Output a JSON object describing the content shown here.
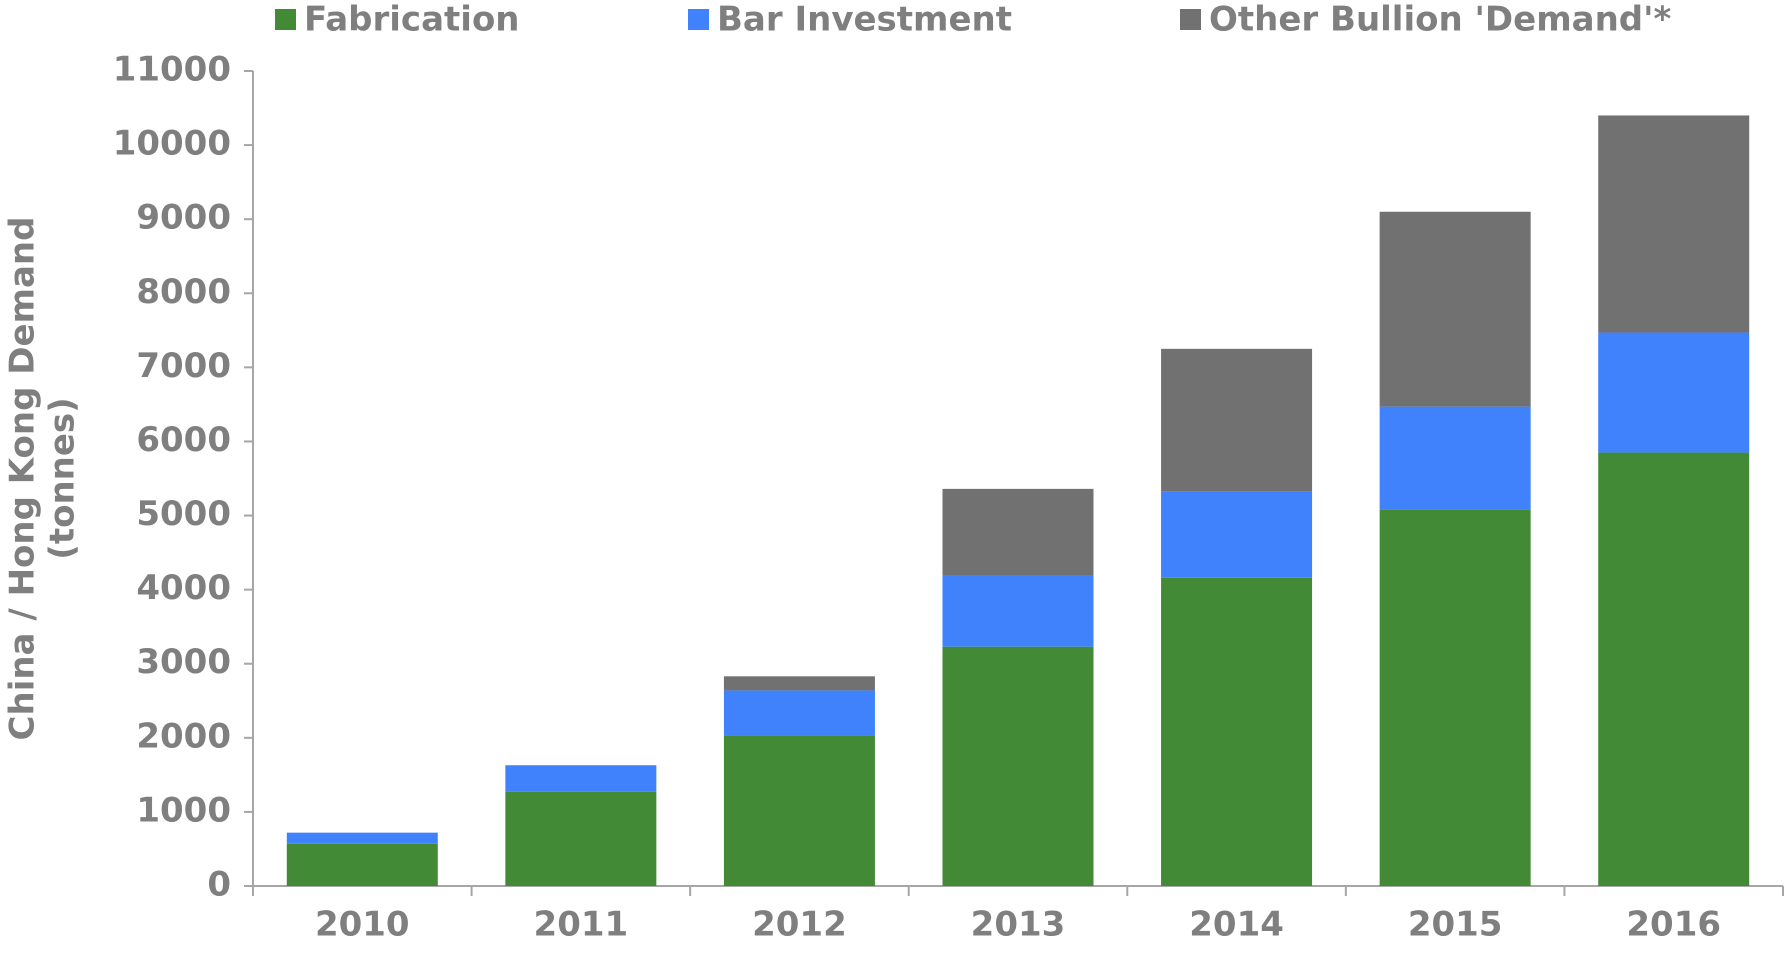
{
  "chart_data": {
    "type": "stacked_bar",
    "y_label": [
      "China / Hong Kong Demand",
      "(tonnes)"
    ],
    "categories": [
      "2010",
      "2011",
      "2012",
      "2013",
      "2014",
      "2015",
      "2016"
    ],
    "series": [
      {
        "name": "Fabrication",
        "color": "#428a35",
        "values": [
          570,
          1270,
          2030,
          3230,
          4160,
          5080,
          5850
        ]
      },
      {
        "name": "Bar Investment",
        "color": "#3f82fc",
        "values": [
          150,
          360,
          610,
          960,
          1170,
          1390,
          1620
        ]
      },
      {
        "name": "Other Bullion 'Demand'*",
        "color": "#717171",
        "values": [
          0,
          0,
          190,
          1170,
          1920,
          2630,
          2930
        ]
      }
    ],
    "ylim": [
      0,
      11000
    ],
    "yticks": [
      0,
      1000,
      2000,
      3000,
      4000,
      5000,
      6000,
      7000,
      8000,
      9000,
      10000,
      11000
    ],
    "grid": false,
    "legend": "top"
  }
}
